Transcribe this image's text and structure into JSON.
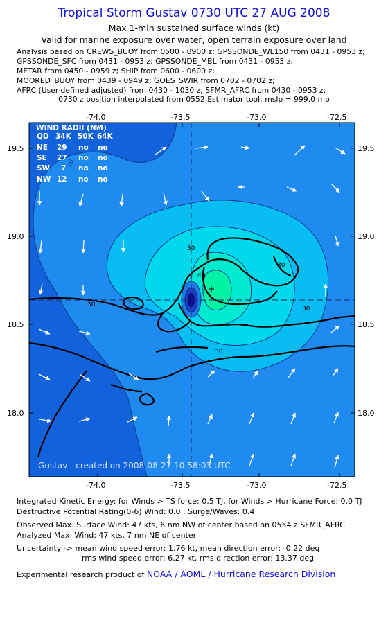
{
  "header": {
    "title": "Tropical Storm Gustav 0730 UTC 27 AUG 2008",
    "subtitle": "Max 1-min sustained surface winds (kt)",
    "valid_for": "Valid for marine exposure over water, open terrain exposure over land",
    "analysis_lines": [
      "Analysis based on  CREWS_BUOY from 0500 - 0900 z;  GPSSONDE_WL150 from 0431 - 0953 z;",
      "GPSSONDE_SFC from 0431 - 0953 z;  GPSSONDE_MBL from 0431 - 0953 z;",
      "METAR from 0450 - 0959 z;  SHIP from 0600 - 0600 z;",
      "MOORED_BUOY from 0439 - 0949 z;  GOES_SWIR from 0702 - 0702 z;",
      "AFRC (User-defined adjusted) from 0430 - 1030 z;  SFMR_AFRC from 0430 - 0953 z;"
    ],
    "position_note": "0730 z position interpolated from 0552 Estimator tool; mslp = 999.0 mb"
  },
  "map": {
    "lon_ticks_top": [
      "-74.0",
      "-73.5",
      "-73.0",
      "-72.5"
    ],
    "lon_ticks_bottom": [
      "-74.0",
      "-73.5",
      "-73.0",
      "-72.5"
    ],
    "lat_ticks": [
      "19.5",
      "19.0",
      "18.5",
      "18.0"
    ],
    "lon_range": [
      -74.4,
      -72.4
    ],
    "lat_range": [
      17.65,
      19.68
    ],
    "center": {
      "lon": -73.43,
      "lat": 18.64
    },
    "contour_labels": [
      "30",
      "20",
      "30",
      "30",
      "30",
      "40",
      "30"
    ],
    "wind_radii": {
      "title": "WIND RADII (NM)",
      "columns": [
        "QD",
        "34K",
        "50K",
        "64K"
      ],
      "rows": [
        [
          "NE",
          "29",
          "no",
          "no"
        ],
        [
          "SE",
          "27",
          "no",
          "no"
        ],
        [
          "SW",
          "7",
          "no",
          "no"
        ],
        [
          "NW",
          "12",
          "no",
          "no"
        ]
      ]
    },
    "credit": "Gustav - created on 2008-08-27 10:58:03 UTC",
    "colors": {
      "deep_ocean": "#1262dc",
      "band_20": "#1f8af0",
      "band_30": "#08bdf2",
      "band_40": "#00e0dc",
      "band_max": "#00f3a2",
      "eye": "#0a0a8c",
      "coast": "#000000",
      "arrows": "#ffffff"
    }
  },
  "footer": {
    "lines": [
      "Integrated Kinetic Energy:  for Winds > TS force: 0.5 TJ,  for Winds > Hurricane Force: 0.0 TJ",
      "Destructive Potential Rating(0-6)   Wind: 0.0 , Surge/Waves: 0.4",
      "Observed Max. Surface Wind: 47 kts, 6 nm NW of center based on 0554 z SFMR_AFRC",
      "Analyzed Max. Wind: 47 kts, 7 nm NE of center",
      "Uncertainty -> mean wind speed error: 1.76 kt,   mean direction error:  -0.22 deg",
      "rms wind speed error: 6.27 kt,   rms direction error: 13.37 deg"
    ],
    "product_prefix": "Experimental research product of",
    "product_link": "NOAA / AOML / Hurricane Research Division"
  }
}
